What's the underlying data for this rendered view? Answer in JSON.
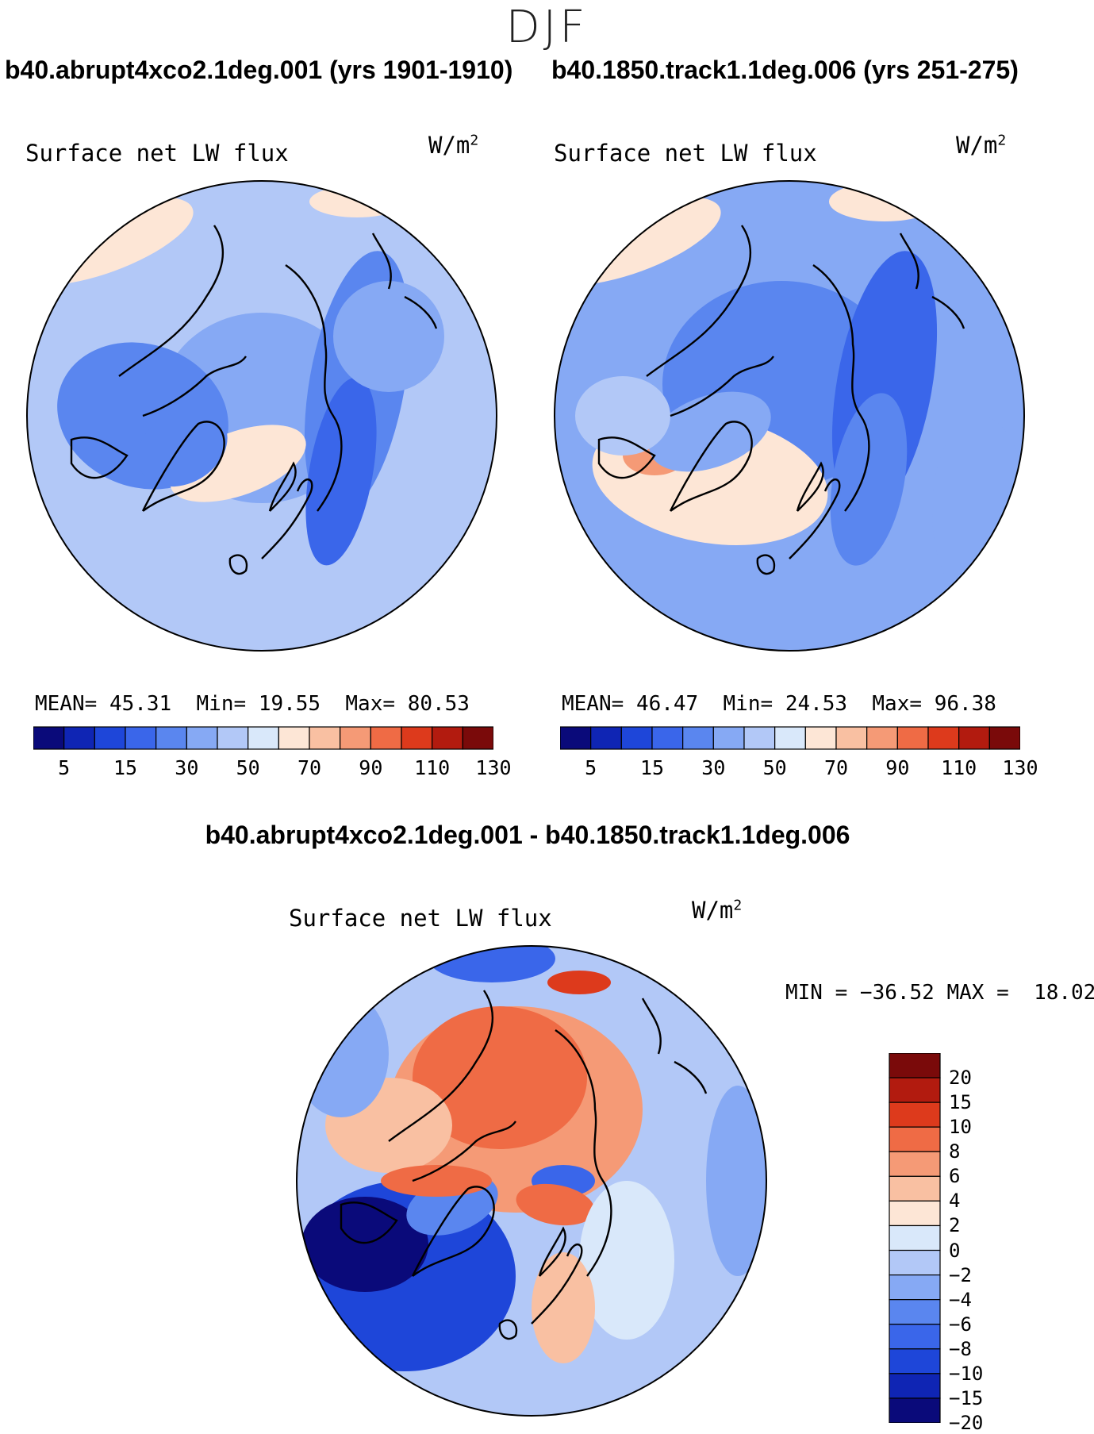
{
  "season": "DJF",
  "panels": [
    {
      "title": "b40.abrupt4xco2.1deg.001 (yrs 1901-1910)",
      "label": "Surface net LW flux",
      "units": "W/m",
      "units_exp": "2",
      "mean_label": "MEAN=",
      "mean": "45.31",
      "min_label": "Min=",
      "min": "19.55",
      "max_label": "Max=",
      "max": "80.53"
    },
    {
      "title": "b40.1850.track1.1deg.006 (yrs 251-275)",
      "label": "Surface net LW flux",
      "units": "W/m",
      "units_exp": "2",
      "mean_label": "MEAN=",
      "mean": "46.47",
      "min_label": "Min=",
      "min": "24.53",
      "max_label": "Max=",
      "max": "96.38"
    }
  ],
  "diff": {
    "title": "b40.abrupt4xco2.1deg.001 - b40.1850.track1.1deg.006",
    "label": "Surface net LW flux",
    "units": "W/m",
    "units_exp": "2",
    "minmax": "MIN = −36.52 MAX =  18.02"
  },
  "chart_data": [
    {
      "type": "heatmap",
      "title": "b40.abrupt4xco2.1deg.001 (yrs 1901-1910)",
      "subtitle": "Surface net LW flux",
      "units": "W/m2",
      "mean": 45.31,
      "min": 19.55,
      "max": 80.53,
      "colorbar_levels": [
        "5",
        "15",
        "30",
        "50",
        "70",
        "90",
        "110",
        "130"
      ],
      "colorbar_colors": [
        "#0a0a7a",
        "#0f25b4",
        "#1e46d9",
        "#3a66ea",
        "#5a86ef",
        "#86a9f4",
        "#b2c8f7",
        "#d9e8fa",
        "#fde6d6",
        "#f9c0a2",
        "#f59a76",
        "#ef6b45",
        "#dd3a1c",
        "#b21b0f",
        "#7a0a0a"
      ]
    },
    {
      "type": "heatmap",
      "title": "b40.1850.track1.1deg.006 (yrs 251-275)",
      "subtitle": "Surface net LW flux",
      "units": "W/m2",
      "mean": 46.47,
      "min": 24.53,
      "max": 96.38,
      "colorbar_levels": [
        "5",
        "15",
        "30",
        "50",
        "70",
        "90",
        "110",
        "130"
      ],
      "colorbar_colors": [
        "#0a0a7a",
        "#0f25b4",
        "#1e46d9",
        "#3a66ea",
        "#5a86ef",
        "#86a9f4",
        "#b2c8f7",
        "#d9e8fa",
        "#fde6d6",
        "#f9c0a2",
        "#f59a76",
        "#ef6b45",
        "#dd3a1c",
        "#b21b0f",
        "#7a0a0a"
      ]
    },
    {
      "type": "heatmap",
      "title": "b40.abrupt4xco2.1deg.001 - b40.1850.track1.1deg.006",
      "subtitle": "Surface net LW flux",
      "units": "W/m2",
      "min": -36.52,
      "max": 18.02,
      "colorbar_levels": [
        "20",
        "15",
        "10",
        "8",
        "6",
        "4",
        "2",
        "0",
        "−2",
        "−4",
        "−6",
        "−8",
        "−10",
        "−15",
        "−20"
      ],
      "colorbar_colors": [
        "#7a0a0a",
        "#b21b0f",
        "#dd3a1c",
        "#ef6b45",
        "#f59a76",
        "#f9c0a2",
        "#fde6d6",
        "#d9e8fa",
        "#b2c8f7",
        "#86a9f4",
        "#5a86ef",
        "#3a66ea",
        "#1e46d9",
        "#0f25b4",
        "#0a0a7a"
      ]
    }
  ]
}
